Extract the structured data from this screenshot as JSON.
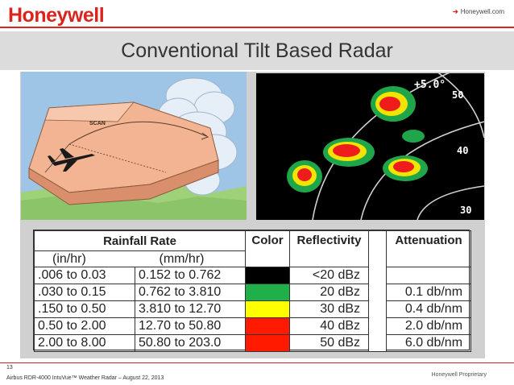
{
  "header": {
    "logo": "Honeywell",
    "link_arrow": "➔",
    "link_text": "Honeywell.com"
  },
  "slide": {
    "title": "Conventional Tilt Based Radar"
  },
  "illustration": {
    "scan_label": "SCAN"
  },
  "radar_display": {
    "tilt_label": "+5.0°",
    "range_labels": [
      "50",
      "40",
      "30"
    ]
  },
  "table": {
    "headers": {
      "rainfall_rate": "Rainfall Rate",
      "color": "Color",
      "reflectivity": "Reflectivity",
      "attenuation": "Attenuation",
      "in_hr": "(in/hr)",
      "mm_hr": "(mm/hr)"
    },
    "rows": [
      {
        "in_hr": ".006 to 0.03",
        "mm_hr": "0.152 to 0.762",
        "color": "#000000",
        "reflectivity": "<20 dBz",
        "attenuation": ""
      },
      {
        "in_hr": ".030 to 0.15",
        "mm_hr": "0.762 to 3.810",
        "color": "#1fb04a",
        "reflectivity": "20 dBz",
        "attenuation": "0.1 db/nm"
      },
      {
        "in_hr": ".150 to 0.50",
        "mm_hr": "3.810 to 12.70",
        "color": "#ffff00",
        "reflectivity": "30 dBz",
        "attenuation": "0.4 db/nm"
      },
      {
        "in_hr": "0.50 to 2.00",
        "mm_hr": "12.70 to 50.80",
        "color": "#ff1a00",
        "reflectivity": "40 dBz",
        "attenuation": "2.0 db/nm"
      },
      {
        "in_hr": "2.00 to 8.00",
        "mm_hr": "50.80 to 203.0",
        "color": "#ff1a00",
        "reflectivity": "50 dBz",
        "attenuation": "6.0 db/nm"
      }
    ]
  },
  "footer": {
    "page_number": "13",
    "left_text": "Airbus RDR-4000 IntuVue™ Weather Radar – August 22, 2013",
    "right_text": "Honeywell Proprietary"
  }
}
